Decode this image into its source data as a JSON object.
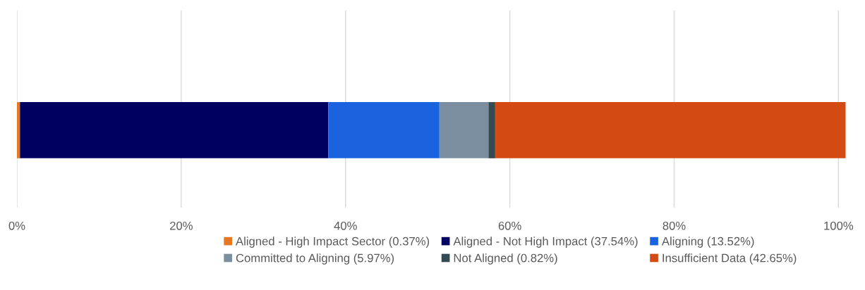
{
  "chart_data": {
    "type": "bar",
    "orientation": "horizontal",
    "stacked": true,
    "categories": [
      null
    ],
    "series": [
      {
        "name": "Aligned - High Impact Sector (0.37%)",
        "color": "#e87722",
        "values": [
          0.37
        ]
      },
      {
        "name": "Aligned - Not High Impact (37.54%)",
        "color": "#000060",
        "values": [
          37.54
        ]
      },
      {
        "name": "Aligning (13.52%)",
        "color": "#1a62de",
        "values": [
          13.52
        ]
      },
      {
        "name": "Committed to Aligning (5.97%)",
        "color": "#7b8fa1",
        "values": [
          5.97
        ]
      },
      {
        "name": "Not Aligned (0.82%)",
        "color": "#344a55",
        "values": [
          0.82
        ]
      },
      {
        "name": "Insufficient Data (42.65%)",
        "color": "#d34b12",
        "values": [
          42.65
        ]
      }
    ],
    "xlim": [
      0,
      101
    ],
    "xticks": [
      {
        "value": 0,
        "label": "0%"
      },
      {
        "value": 20,
        "label": "20%"
      },
      {
        "value": 40,
        "label": "40%"
      },
      {
        "value": 60,
        "label": "60%"
      },
      {
        "value": 80,
        "label": "80%"
      },
      {
        "value": 100,
        "label": "100%"
      }
    ],
    "grid": "x",
    "legend": "bottom"
  }
}
